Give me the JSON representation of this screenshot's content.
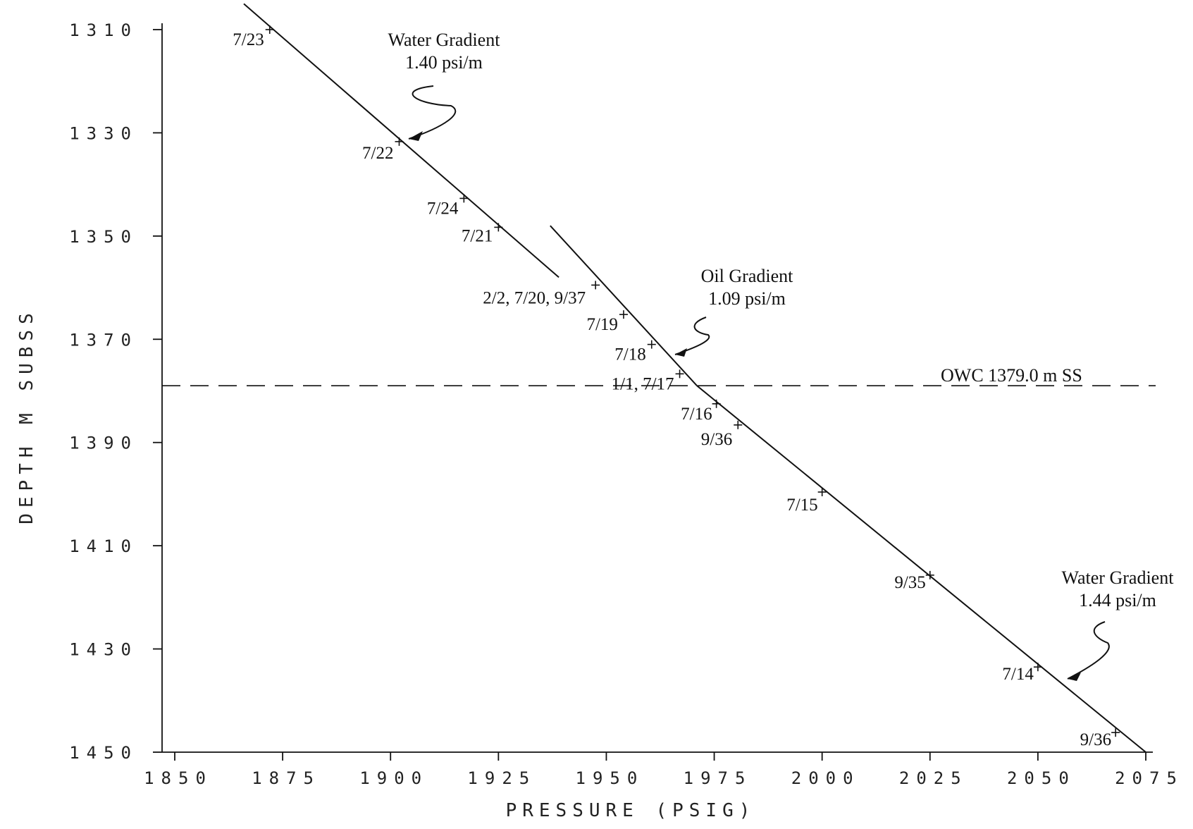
{
  "chart_data": {
    "type": "scatter",
    "xlabel": "PRESSURE (PSIG)",
    "ylabel": "DEPTH M SUBSS",
    "xlim": [
      1850,
      2075
    ],
    "ylim": [
      1450,
      1310
    ],
    "x_ticks": [
      1850,
      1875,
      1900,
      1925,
      1950,
      1975,
      2000,
      2025,
      2050,
      2075
    ],
    "y_ticks": [
      1310,
      1330,
      1350,
      1370,
      1390,
      1410,
      1430,
      1450
    ],
    "grid": false,
    "points": [
      {
        "label": "7/23",
        "x": 1872,
        "y": 1310.0
      },
      {
        "label": "7/22",
        "x": 1902,
        "y": 1331.7
      },
      {
        "label": "7/24",
        "x": 1917,
        "y": 1342.7
      },
      {
        "label": "7/21",
        "x": 1925,
        "y": 1348.3
      },
      {
        "label": "2/2, 7/20, 9/37",
        "x": 1947.5,
        "y": 1359.5
      },
      {
        "label": "7/19",
        "x": 1954,
        "y": 1365.2
      },
      {
        "label": "7/18",
        "x": 1960.5,
        "y": 1371.0
      },
      {
        "label": "1/1, 7/17",
        "x": 1967,
        "y": 1376.7
      },
      {
        "label": "7/16",
        "x": 1975.5,
        "y": 1382.5
      },
      {
        "label": "9/36",
        "x": 1980.5,
        "y": 1386.6
      },
      {
        "label": "7/15",
        "x": 2000,
        "y": 1399.6
      },
      {
        "label": "9/35",
        "x": 2025,
        "y": 1415.7
      },
      {
        "label": "7/14",
        "x": 2050,
        "y": 1433.5
      },
      {
        "label": "9/36",
        "x": 2068,
        "y": 1446.2
      }
    ],
    "series": [
      {
        "name": "Water Gradient 1.40 psi/m",
        "values": [
          [
            1866,
            1305
          ],
          [
            1939,
            1358
          ]
        ]
      },
      {
        "name": "Oil Gradient 1.09 psi/m",
        "values": [
          [
            1937,
            1348
          ],
          [
            1971,
            1379
          ]
        ]
      },
      {
        "name": "Water Gradient 1.44 psi/m",
        "values": [
          [
            1971,
            1379
          ],
          [
            2075,
            1450
          ]
        ]
      }
    ],
    "reference_line": {
      "label": "OWC 1379.0 m SS",
      "y": 1379.0
    },
    "annotations": [
      {
        "line1": "Water Gradient",
        "line2": "1.40 psi/m"
      },
      {
        "line1": "Oil Gradient",
        "line2": "1.09 psi/m"
      },
      {
        "line1": "Water Gradient",
        "line2": "1.44 psi/m"
      }
    ]
  }
}
